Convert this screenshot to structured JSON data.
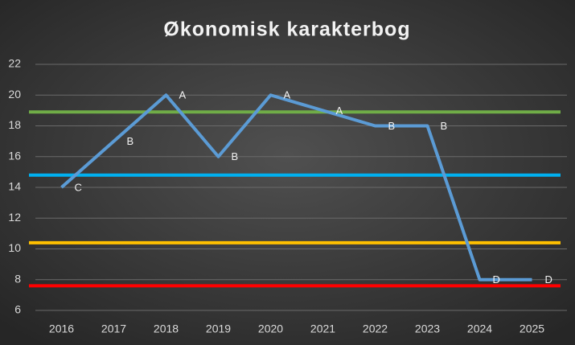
{
  "chart_data": {
    "type": "line",
    "title": "Økonomisk karakterbog",
    "categories": [
      "2016",
      "2017",
      "2018",
      "2019",
      "2020",
      "2021",
      "2022",
      "2023",
      "2024",
      "2025"
    ],
    "values": [
      14,
      17,
      20,
      16,
      20,
      19,
      18,
      18,
      8,
      8
    ],
    "value_labels": [
      "C",
      "B",
      "A",
      "B",
      "A",
      "A",
      "B",
      "B",
      "D",
      "D"
    ],
    "color": "#5b9bd5",
    "reference_lines": [
      {
        "value": 18.9,
        "color": "#70ad47"
      },
      {
        "value": 14.8,
        "color": "#00b0f0"
      },
      {
        "value": 10.4,
        "color": "#ffc000"
      },
      {
        "value": 7.6,
        "color": "#ff0000"
      }
    ],
    "ylim": [
      6,
      22
    ],
    "yticks": [
      6,
      8,
      10,
      12,
      14,
      16,
      18,
      20,
      22
    ],
    "grid": true
  }
}
